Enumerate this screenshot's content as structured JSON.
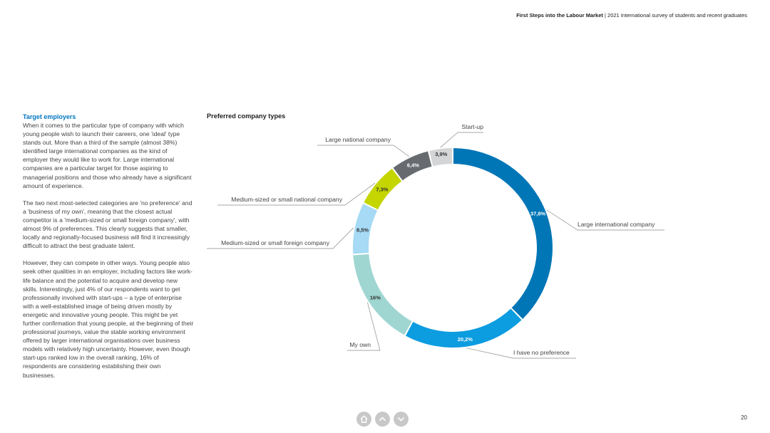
{
  "header": {
    "bold": "First Steps into the Labour Market",
    "separator": " | ",
    "rest": "2021 International survey of students and recent graduates"
  },
  "text": {
    "heading": "Target employers",
    "paragraphs": [
      "When it comes to the particular type of company with which young people wish to launch their careers, one 'ideal' type stands out. More than a third of the sample (almost 38%) identified large international companies as the kind of employer they would like to work for. Large international companies are a particular target for those aspiring to managerial positions and those who already have a significant amount of experience.",
      "The two next most-selected categories are 'no preference' and a 'business of my own', meaning that the closest actual competitor is a 'medium-sized or small foreign company', with almost 9% of preferences. This clearly suggests that smaller, locally and regionally-focused business will find it increasingly difficult to attract the best graduate talent.",
      "However, they can compete in other ways. Young people also seek other qualities in an employer, including factors like work-life balance and the potential to acquire and develop new skills. Interestingly, just 4% of our respondents want to get professionally involved with start-ups – a type of enterprise with a well-established image of being driven mostly by energetic and innovative young people. This might be yet further confirmation that young people, at the beginning of their professional journeys, value the stable working environment offered by larger international organisations over business models with relatively high uncertainty. However, even though start-ups ranked low in the overall ranking, 16% of respondents are considering establishing their own businesses."
    ]
  },
  "chart_data": {
    "type": "pie",
    "variant": "donut",
    "title": "Preferred company types",
    "slices": [
      {
        "label": "Large international company",
        "value": 37.8,
        "value_label": "37,8%",
        "color": "#0076b6"
      },
      {
        "label": "I have no preference",
        "value": 20.2,
        "value_label": "20,2%",
        "color": "#0c9ce0"
      },
      {
        "label": "My own",
        "value": 16,
        "value_label": "16%",
        "color": "#9fd6d2"
      },
      {
        "label": "Medium-sized or small foreign company",
        "value": 8.5,
        "value_label": "8,5%",
        "color": "#a6daf5"
      },
      {
        "label": "Medium-sized or small national company",
        "value": 7.3,
        "value_label": "7,3%",
        "color": "#c4d500"
      },
      {
        "label": "Large national company",
        "value": 6.4,
        "value_label": "6,4%",
        "color": "#676b70"
      },
      {
        "label": "Start-up",
        "value": 3.9,
        "value_label": "3,9%",
        "color": "#d4d5d6"
      }
    ]
  },
  "nav": {
    "home_icon": "home-icon",
    "up_icon": "chevron-up-icon",
    "down_icon": "chevron-down-icon"
  },
  "page_number": "20"
}
